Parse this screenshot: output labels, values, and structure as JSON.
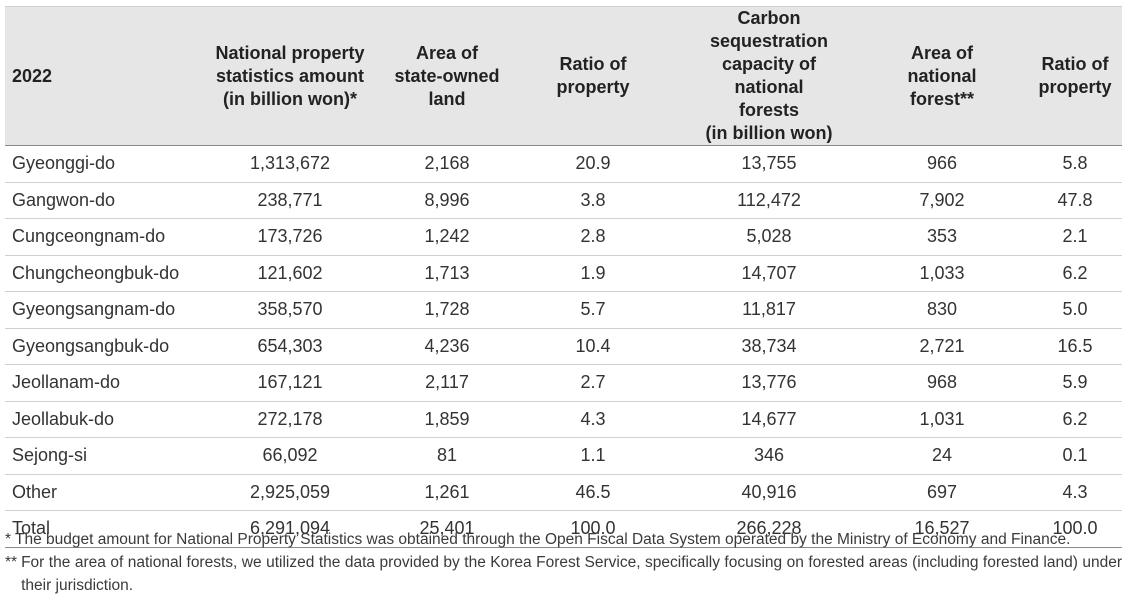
{
  "table": {
    "headers": [
      [
        "2022"
      ],
      [
        "National property",
        "statistics amount",
        "(in billion won)*"
      ],
      [
        "Area of",
        "state-owned",
        "land"
      ],
      [
        "Ratio of",
        "property"
      ],
      [
        "Carbon sequestration",
        "capacity of national",
        "forests",
        "(in billion won)"
      ],
      [
        "Area of",
        "national",
        "forest**"
      ],
      [
        "Ratio of",
        "property"
      ]
    ],
    "rows": [
      [
        "Gyeonggi-do",
        "1,313,672",
        "2,168",
        "20.9",
        "13,755",
        "966",
        "5.8"
      ],
      [
        "Gangwon-do",
        "238,771",
        "8,996",
        "3.8",
        "112,472",
        "7,902",
        "47.8"
      ],
      [
        "Cungceongnam-do",
        "173,726",
        "1,242",
        "2.8",
        "5,028",
        "353",
        "2.1"
      ],
      [
        "Chungcheongbuk-do",
        "121,602",
        "1,713",
        "1.9",
        "14,707",
        "1,033",
        "6.2"
      ],
      [
        "Gyeongsangnam-do",
        "358,570",
        "1,728",
        "5.7",
        "11,817",
        "830",
        "5.0"
      ],
      [
        "Gyeongsangbuk-do",
        "654,303",
        "4,236",
        "10.4",
        "38,734",
        "2,721",
        "16.5"
      ],
      [
        "Jeollanam-do",
        "167,121",
        "2,117",
        "2.7",
        "13,776",
        "968",
        "5.9"
      ],
      [
        "Jeollabuk-do",
        "272,178",
        "1,859",
        "4.3",
        "14,677",
        "1,031",
        "6.2"
      ],
      [
        "Sejong-si",
        "66,092",
        "81",
        "1.1",
        "346",
        "24",
        "0.1"
      ],
      [
        "Other",
        "2,925,059",
        "1,261",
        "46.5",
        "40,916",
        "697",
        "4.3"
      ],
      [
        "Total",
        "6,291,094",
        "25,401",
        "100.0",
        "266,228",
        "16,527",
        "100.0"
      ]
    ]
  },
  "footnotes": [
    {
      "mark": "*",
      "text": "The budget amount for National Property Statistics was obtained through the Open Fiscal Data System operated by the Ministry of Economy and Finance."
    },
    {
      "mark": "**",
      "text": "For the area of national forests, we utilized the data provided by the Korea Forest Service, specifically focusing on forested areas (including forested land) under their jurisdiction."
    }
  ]
}
